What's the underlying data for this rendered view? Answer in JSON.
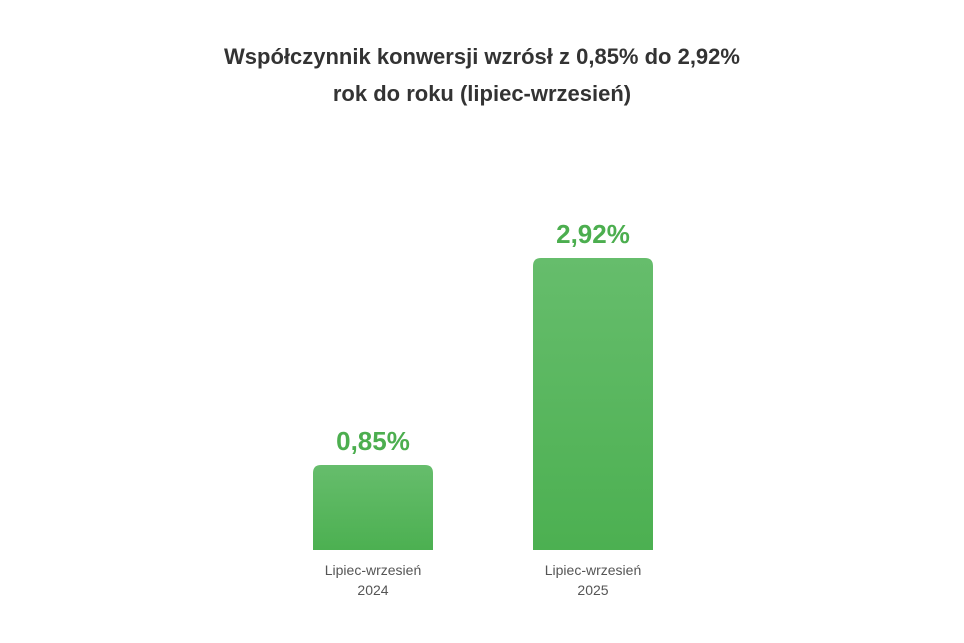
{
  "colors": {
    "bar_top": "#66bd6c",
    "bar_bottom": "#4cb051",
    "value_text": "#4cae4f",
    "title_text": "#333333",
    "category_text": "#555555"
  },
  "chart_data": {
    "type": "bar",
    "title": "Współczynnik konwersji wzrósł z 0,85% do 2,92%",
    "subtitle": "rok do roku (lipiec-wrzesień)",
    "categories": [
      [
        "Lipiec-wrzesień",
        "2024"
      ],
      [
        "Lipiec-wrzesień",
        "2025"
      ]
    ],
    "values": [
      0.85,
      2.92
    ],
    "value_labels": [
      "0,85%",
      "2,92%"
    ],
    "ylim": [
      0,
      2.92
    ],
    "xlabel": "",
    "ylabel": "",
    "grid": false,
    "legend": "none"
  }
}
